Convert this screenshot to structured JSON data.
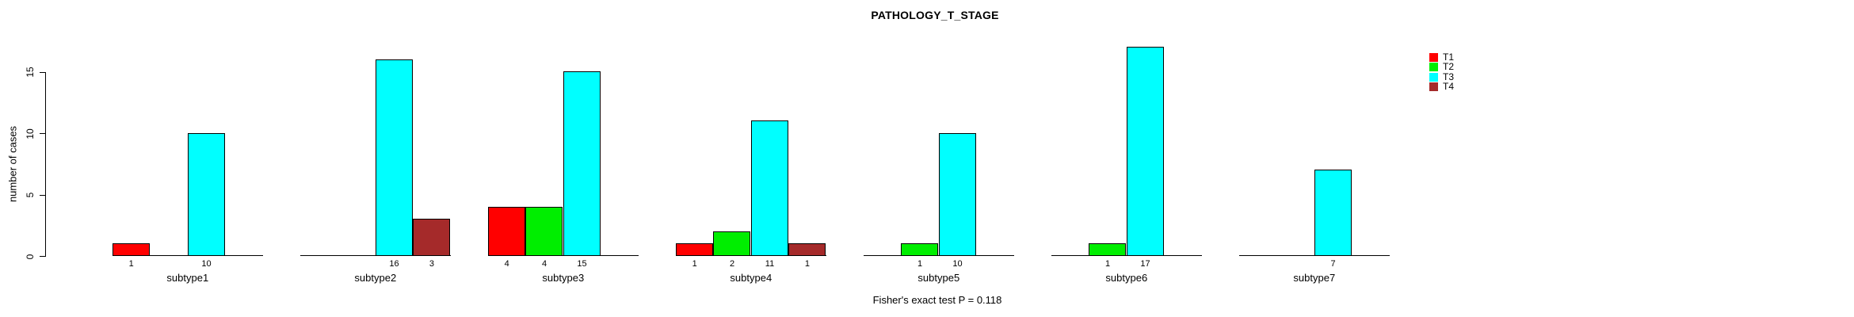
{
  "chart_data": {
    "type": "bar",
    "title": "PATHOLOGY_T_STAGE",
    "ylabel": "number of cases",
    "annotation": "Fisher's exact test P = 0.118",
    "ylim": [
      0,
      17
    ],
    "yticks": [
      0,
      5,
      10,
      15
    ],
    "grid": false,
    "legend_position": "right",
    "categories": [
      "subtype1",
      "subtype2",
      "subtype3",
      "subtype4",
      "subtype5",
      "subtype6",
      "subtype7"
    ],
    "series": [
      {
        "name": "T1",
        "color": "#FF0000",
        "values": [
          1,
          0,
          4,
          1,
          0,
          0,
          0
        ]
      },
      {
        "name": "T2",
        "color": "#00EE00",
        "values": [
          0,
          0,
          4,
          2,
          1,
          1,
          0
        ]
      },
      {
        "name": "T3",
        "color": "#00FFFF",
        "values": [
          10,
          16,
          15,
          11,
          10,
          17,
          7
        ]
      },
      {
        "name": "T4",
        "color": "#A52A2A",
        "values": [
          0,
          3,
          0,
          1,
          0,
          0,
          0
        ]
      }
    ],
    "bar_value_labels": [
      [
        "1",
        "",
        "4",
        "1",
        "",
        "",
        ""
      ],
      [
        "",
        "",
        "4",
        "2",
        "1",
        "1",
        ""
      ],
      [
        "10",
        "16",
        "15",
        "11",
        "10",
        "17",
        "7"
      ],
      [
        "",
        "3",
        "",
        "1",
        "",
        "",
        ""
      ]
    ]
  }
}
